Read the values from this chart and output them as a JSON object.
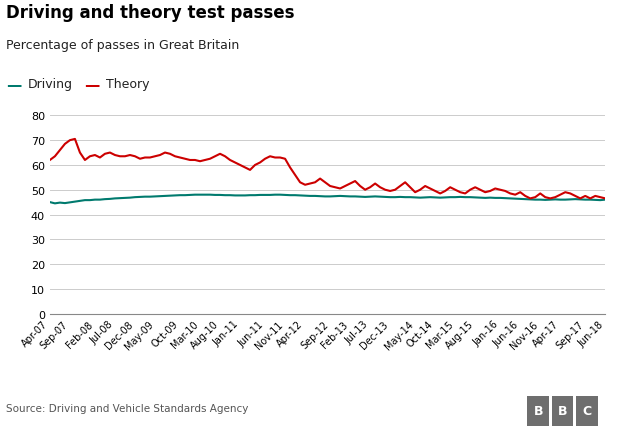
{
  "title": "Driving and theory test passes",
  "subtitle": "Percentage of passes in Great Britain",
  "source": "Source: Driving and Vehicle Standards Agency",
  "driving_color": "#007A6E",
  "theory_color": "#CC0000",
  "background_color": "#ffffff",
  "ylim": [
    0,
    80
  ],
  "yticks": [
    0,
    10,
    20,
    30,
    40,
    50,
    60,
    70,
    80
  ],
  "x_labels": [
    "Apr-07",
    "Sep-07",
    "Feb-08",
    "Jul-08",
    "Dec-08",
    "May-09",
    "Oct-09",
    "Mar-10",
    "Aug-10",
    "Jan-11",
    "Jun-11",
    "Nov-11",
    "Apr-12",
    "Sep-12",
    "Feb-13",
    "Jul-13",
    "Dec-13",
    "May-14",
    "Oct-14",
    "Mar-15",
    "Aug-15",
    "Jan-16",
    "Jun-16",
    "Nov-16",
    "Apr-17",
    "Sep-17",
    "Jun-18"
  ],
  "driving_values": [
    45.0,
    44.5,
    44.8,
    44.6,
    44.9,
    45.2,
    45.5,
    45.8,
    45.8,
    46.0,
    46.0,
    46.2,
    46.3,
    46.5,
    46.6,
    46.7,
    46.8,
    47.0,
    47.1,
    47.2,
    47.2,
    47.3,
    47.4,
    47.5,
    47.6,
    47.7,
    47.8,
    47.8,
    47.9,
    48.0,
    48.0,
    48.0,
    48.0,
    47.9,
    47.9,
    47.8,
    47.8,
    47.7,
    47.7,
    47.7,
    47.8,
    47.8,
    47.9,
    47.9,
    47.9,
    48.0,
    48.0,
    47.9,
    47.8,
    47.8,
    47.7,
    47.6,
    47.5,
    47.5,
    47.4,
    47.3,
    47.3,
    47.4,
    47.5,
    47.4,
    47.3,
    47.3,
    47.2,
    47.1,
    47.2,
    47.3,
    47.2,
    47.1,
    47.0,
    47.0,
    47.1,
    47.0,
    47.0,
    46.9,
    46.8,
    46.9,
    47.0,
    46.9,
    46.8,
    46.9,
    47.0,
    47.0,
    47.1,
    47.0,
    47.0,
    46.9,
    46.8,
    46.7,
    46.8,
    46.7,
    46.7,
    46.6,
    46.5,
    46.4,
    46.3,
    46.2,
    46.1,
    46.0,
    46.0,
    45.9,
    46.0,
    46.1,
    46.0,
    46.0,
    46.1,
    46.2,
    46.1,
    46.0,
    46.0,
    45.9,
    45.8,
    46.0
  ],
  "theory_values": [
    62.0,
    63.5,
    66.0,
    68.5,
    70.0,
    70.5,
    65.0,
    62.0,
    63.5,
    64.0,
    63.0,
    64.5,
    65.0,
    64.0,
    63.5,
    63.5,
    64.0,
    63.5,
    62.5,
    63.0,
    63.0,
    63.5,
    64.0,
    65.0,
    64.5,
    63.5,
    63.0,
    62.5,
    62.0,
    62.0,
    61.5,
    62.0,
    62.5,
    63.5,
    64.5,
    63.5,
    62.0,
    61.0,
    60.0,
    59.0,
    58.0,
    60.0,
    61.0,
    62.5,
    63.5,
    63.0,
    63.0,
    62.5,
    59.0,
    56.0,
    53.0,
    52.0,
    52.5,
    53.0,
    54.5,
    53.0,
    51.5,
    51.0,
    50.5,
    51.5,
    52.5,
    53.5,
    51.5,
    50.0,
    51.0,
    52.5,
    51.0,
    50.0,
    49.5,
    50.0,
    51.5,
    53.0,
    51.0,
    49.0,
    50.0,
    51.5,
    50.5,
    49.5,
    48.5,
    49.5,
    51.0,
    50.0,
    49.0,
    48.5,
    50.0,
    51.0,
    50.0,
    49.0,
    49.5,
    50.5,
    50.0,
    49.5,
    48.5,
    48.0,
    49.0,
    47.5,
    46.5,
    47.0,
    48.5,
    47.0,
    46.5,
    47.0,
    48.0,
    49.0,
    48.5,
    47.5,
    46.5,
    47.5,
    46.5,
    47.5,
    47.0,
    46.5
  ]
}
